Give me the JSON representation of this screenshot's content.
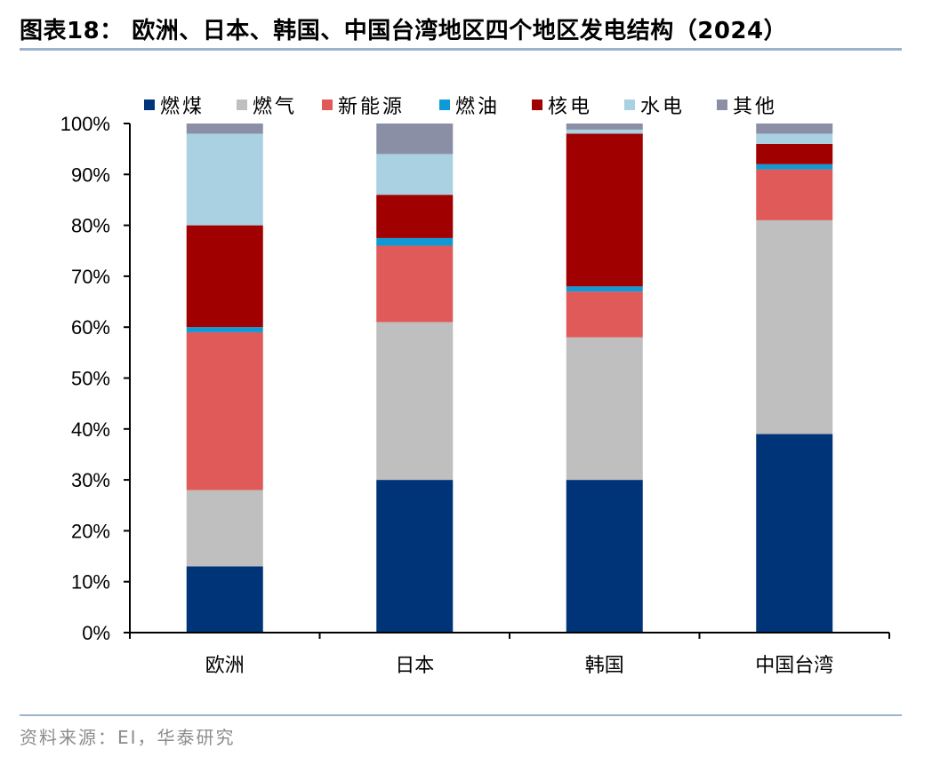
{
  "header": {
    "title": "图表18：  欧洲、日本、韩国、中国台湾地区四个地区发电结构（2024）"
  },
  "footer": {
    "source": "资料来源：EI，华泰研究"
  },
  "colors": {
    "rule": "#9bb4cc",
    "axis": "#000000"
  },
  "chart_data": {
    "type": "bar",
    "stacked": true,
    "categories": [
      "欧洲",
      "日本",
      "韩国",
      "中国台湾"
    ],
    "ylim": [
      0,
      100
    ],
    "yticks": [
      0,
      10,
      20,
      30,
      40,
      50,
      60,
      70,
      80,
      90,
      100
    ],
    "ytick_labels": [
      "0%",
      "10%",
      "20%",
      "30%",
      "40%",
      "50%",
      "60%",
      "70%",
      "80%",
      "90%",
      "100%"
    ],
    "legend_position": "top",
    "grid": false,
    "series": [
      {
        "name": "燃煤",
        "color": "#003478",
        "values": [
          13,
          30,
          30,
          39
        ]
      },
      {
        "name": "燃气",
        "color": "#bfbfbf",
        "values": [
          15,
          31,
          28,
          42
        ]
      },
      {
        "name": "新能源",
        "color": "#e05a5a",
        "values": [
          31,
          15,
          9,
          10
        ]
      },
      {
        "name": "燃油",
        "color": "#0f9ad6",
        "values": [
          1,
          1.5,
          1,
          1
        ]
      },
      {
        "name": "核电",
        "color": "#a00000",
        "values": [
          20,
          8.5,
          30,
          4
        ]
      },
      {
        "name": "水电",
        "color": "#a9d1e1",
        "values": [
          18,
          8,
          0.8,
          2
        ]
      },
      {
        "name": "其他",
        "color": "#8a8fa6",
        "values": [
          2,
          6,
          1.2,
          2
        ]
      }
    ]
  }
}
